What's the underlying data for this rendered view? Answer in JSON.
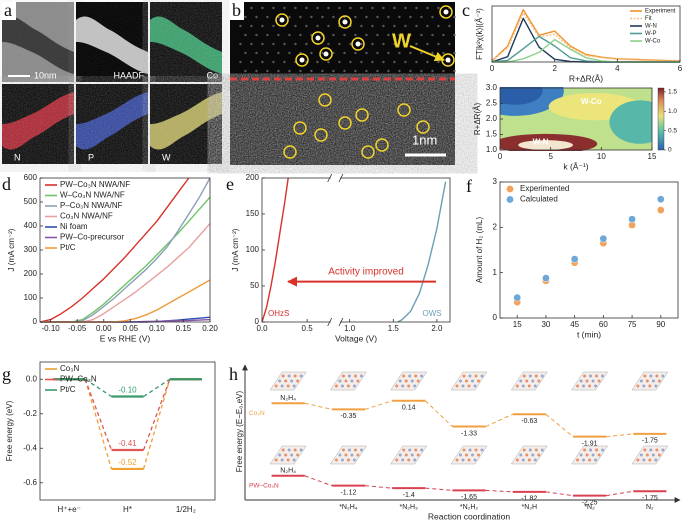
{
  "panels": {
    "a": {
      "letter": "a",
      "scale_bar": "10nm",
      "tiles": [
        "HAADF",
        "Co",
        "N",
        "P",
        "W"
      ]
    },
    "b": {
      "letter": "b",
      "marker": "W",
      "scale_bar": "1nm"
    }
  },
  "chart_data": [
    {
      "type": "line",
      "panel": "c",
      "xlabel": "R+ΔR(Å)",
      "ylabel": "FT|k²χ(k)|(Å⁻³)",
      "x": [
        0,
        0.5,
        1,
        1.5,
        2,
        2.5,
        3,
        3.5,
        4,
        4.5,
        5,
        5.5,
        6
      ],
      "xlim": [
        0,
        6
      ],
      "xticks": [
        0,
        2,
        4,
        6
      ],
      "ylim": [
        0,
        1.05
      ],
      "legend": "upper right",
      "series": [
        {
          "name": "Experiment",
          "color": "#f0932b",
          "values": [
            0.02,
            0.3,
            0.98,
            0.5,
            0.58,
            0.3,
            0.14,
            0.09,
            0.06,
            0.05,
            0.04,
            0.03,
            0.02
          ]
        },
        {
          "name": "Fit",
          "color": "#f5c08a",
          "dash": true,
          "values": [
            0.02,
            0.26,
            0.92,
            0.47,
            0.52,
            0.27,
            0.12,
            0.08,
            0.05,
            0.04,
            0.03,
            0.02,
            0.02
          ]
        },
        {
          "name": "W-N",
          "color": "#1f3b5c",
          "values": [
            0,
            0.1,
            0.82,
            0.28,
            0.05,
            0.01,
            0,
            0,
            0,
            0,
            0,
            0,
            0
          ]
        },
        {
          "name": "W-P",
          "color": "#4f9a94",
          "values": [
            0,
            0.03,
            0.25,
            0.48,
            0.3,
            0.08,
            0.02,
            0,
            0,
            0,
            0,
            0,
            0
          ]
        },
        {
          "name": "W-Co",
          "color": "#8fd18a",
          "values": [
            0,
            0,
            0.06,
            0.18,
            0.42,
            0.24,
            0.08,
            0.02,
            0,
            0,
            0,
            0,
            0
          ]
        }
      ]
    },
    {
      "type": "contour",
      "xlabel": "k (Å⁻¹)",
      "ylabel": "R+ΔR(Å)",
      "xlim": [
        0,
        15
      ],
      "xticks": [
        0,
        5,
        10,
        15
      ],
      "ylim": [
        1,
        3
      ],
      "yticks": [
        {
          "value": 1,
          "label": "1.0"
        },
        1.5,
        {
          "value": 2,
          "label": "2.0"
        },
        2.5,
        {
          "value": 3,
          "label": "3.0"
        }
      ],
      "clim": [
        0,
        1.6
      ],
      "cticks": [
        0,
        0.5,
        {
          "value": 1,
          "label": "1.0"
        },
        1.5
      ],
      "annotations": [
        {
          "text": "W-Co",
          "x": 9,
          "y": 2.55
        },
        {
          "text": "W-N",
          "x": 4,
          "y": 1.25
        }
      ]
    },
    {
      "type": "line",
      "panel": "d",
      "xlabel": "E vs RHE (V)",
      "ylabel": "J (mA cm⁻²)",
      "x": [
        -0.12,
        -0.1,
        -0.08,
        -0.06,
        -0.04,
        -0.02,
        0,
        0.02,
        0.04,
        0.06,
        0.08,
        0.1,
        0.12,
        0.14,
        0.16,
        0.18,
        0.2
      ],
      "xlim": [
        -0.12,
        0.2
      ],
      "xticks": [
        {
          "value": -0.1,
          "label": "-0.10"
        },
        -0.05,
        {
          "value": 0,
          "label": "0.00"
        },
        0.05,
        {
          "value": 0.1,
          "label": "0.10"
        },
        0.15,
        {
          "value": 0.2,
          "label": "0.20"
        }
      ],
      "ylim": [
        0,
        600
      ],
      "yticks": [
        0,
        100,
        200,
        300,
        400,
        500,
        600
      ],
      "legend": "upper left",
      "series": [
        {
          "name": "PW–Co₃N NWA/NF",
          "color": "#d8312a",
          "values": [
            0,
            10,
            35,
            65,
            100,
            140,
            180,
            225,
            270,
            320,
            370,
            420,
            480,
            540,
            600,
            null,
            null
          ]
        },
        {
          "name": "W–Co₃N NWA/NF",
          "color": "#6cc46a",
          "values": [
            0,
            0,
            0,
            0,
            10,
            40,
            75,
            115,
            155,
            195,
            235,
            280,
            325,
            370,
            420,
            470,
            520
          ]
        },
        {
          "name": "P–Co₃N NWA/NF",
          "color": "#8d9fb8",
          "values": [
            0,
            0,
            0,
            0,
            5,
            30,
            65,
            100,
            140,
            180,
            220,
            265,
            315,
            380,
            450,
            520,
            600
          ]
        },
        {
          "name": "Co₃N NWA/NF",
          "color": "#e8a0a0",
          "values": [
            0,
            0,
            0,
            0,
            0,
            10,
            35,
            65,
            95,
            125,
            160,
            195,
            230,
            270,
            310,
            360,
            410
          ]
        },
        {
          "name": "Ni foam",
          "color": "#2d4fb0",
          "values": [
            0,
            0,
            0,
            0,
            0,
            0,
            0,
            0,
            0,
            0,
            0,
            2,
            5,
            8,
            12,
            16,
            20
          ]
        },
        {
          "name": "PW–Co-precursor",
          "color": "#8a55a8",
          "values": [
            0,
            0,
            0,
            0,
            0,
            0,
            0,
            0,
            0,
            1,
            2,
            3,
            4,
            5,
            6,
            8,
            10
          ]
        },
        {
          "name": "Pt/C",
          "color": "#f09a3a",
          "values": [
            0,
            0,
            0,
            0,
            0,
            0,
            0,
            0,
            5,
            15,
            30,
            50,
            75,
            100,
            125,
            150,
            175
          ]
        }
      ]
    },
    {
      "type": "line",
      "panel": "e",
      "xlabel": "Voltage (V)",
      "ylabel": "J (mA cm⁻²)",
      "xlim": [
        0,
        2.15
      ],
      "xbreak": [
        0.75,
        0.9
      ],
      "xticks": [
        {
          "value": 0,
          "label": "0.0"
        },
        0.5,
        {
          "value": 1,
          "label": "1.0"
        },
        1.5,
        {
          "value": 2,
          "label": "2.0"
        }
      ],
      "ylim": [
        0,
        200
      ],
      "yticks": [
        0,
        50,
        100,
        150,
        200
      ],
      "annotations": [
        {
          "text": "Activity improved"
        }
      ],
      "series": [
        {
          "name": "OHzS",
          "color": "#d8312a",
          "x": [
            0,
            0.05,
            0.1,
            0.15,
            0.2,
            0.25,
            0.29
          ],
          "values": [
            0,
            20,
            50,
            85,
            125,
            165,
            200
          ]
        },
        {
          "name": "OWS",
          "color": "#6a9fb5",
          "x": [
            1.55,
            1.6,
            1.7,
            1.8,
            1.9,
            2.0,
            2.1
          ],
          "values": [
            0,
            3,
            15,
            40,
            80,
            130,
            195
          ]
        }
      ]
    },
    {
      "type": "scatter",
      "panel": "f",
      "xlabel": "t (min)",
      "ylabel": "Amount of H₂ (mL)",
      "x": [
        15,
        30,
        45,
        60,
        75,
        90
      ],
      "xlim": [
        6,
        99
      ],
      "xticks": [
        15,
        30,
        45,
        60,
        75,
        90
      ],
      "ylim": [
        0,
        3
      ],
      "yticks": [
        0,
        1,
        2,
        3
      ],
      "legend": "upper left",
      "series": [
        {
          "name": "Experimented",
          "color": "#f2a25a",
          "values": [
            0.35,
            0.82,
            1.22,
            1.65,
            2.05,
            2.38
          ]
        },
        {
          "name": "Calculated",
          "color": "#6ea8d8",
          "values": [
            0.45,
            0.88,
            1.3,
            1.75,
            2.18,
            2.62
          ]
        }
      ]
    },
    {
      "type": "step",
      "panel": "g",
      "ylabel": "Free energy (eV)",
      "categories": [
        "H⁺+e⁻",
        "H*",
        "1/2H₂"
      ],
      "ylim": [
        -0.7,
        0.1
      ],
      "yticks": [
        {
          "value": 0,
          "label": "0.0"
        },
        -0.2,
        -0.4,
        -0.6
      ],
      "legend": "upper left",
      "series": [
        {
          "name": "Co₃N",
          "color": "#f0a030",
          "values": [
            0,
            -0.52,
            0
          ],
          "value_labels": [
            null,
            "-0.52",
            null
          ]
        },
        {
          "name": "PW–Co₃N",
          "color": "#e05555",
          "values": [
            0,
            -0.41,
            0
          ],
          "value_labels": [
            null,
            "-0.41",
            null
          ]
        },
        {
          "name": "Pt/C",
          "color": "#3a9a6a",
          "values": [
            0,
            -0.1,
            0
          ],
          "value_labels": [
            null,
            "-0.10",
            null
          ]
        }
      ]
    },
    {
      "type": "energy",
      "panel": "h",
      "xlabel": "Reaction coordination",
      "ylabel": "Free energy (E−E₀,eV)",
      "categories": [
        "N₂H₄",
        "*N₂H₄",
        "*N₂H₃",
        "*N₂H₂",
        "*N₂H",
        "*N₂",
        "N₂"
      ],
      "series": [
        {
          "name": "Co₃N",
          "color": "#f0a040",
          "ylim": [
            -2.1,
            0.3
          ],
          "values": [
            0,
            -0.35,
            0.14,
            -1.33,
            -0.63,
            -1.91,
            -1.75
          ],
          "value_labels": [
            null,
            "-0.35",
            "0.14",
            "-1.33",
            "-0.63",
            "-1.91",
            "-1.75"
          ]
        },
        {
          "name": "PW–Co₃N",
          "color": "#d94050",
          "ylim": [
            -2.4,
            0.2
          ],
          "values": [
            0,
            -1.12,
            -1.4,
            -1.65,
            -1.82,
            -2.25,
            -1.75
          ],
          "value_labels": [
            null,
            "-1.12",
            "-1.4",
            "-1.65",
            "-1.82",
            "-2.25",
            "-1.75"
          ]
        }
      ]
    }
  ]
}
